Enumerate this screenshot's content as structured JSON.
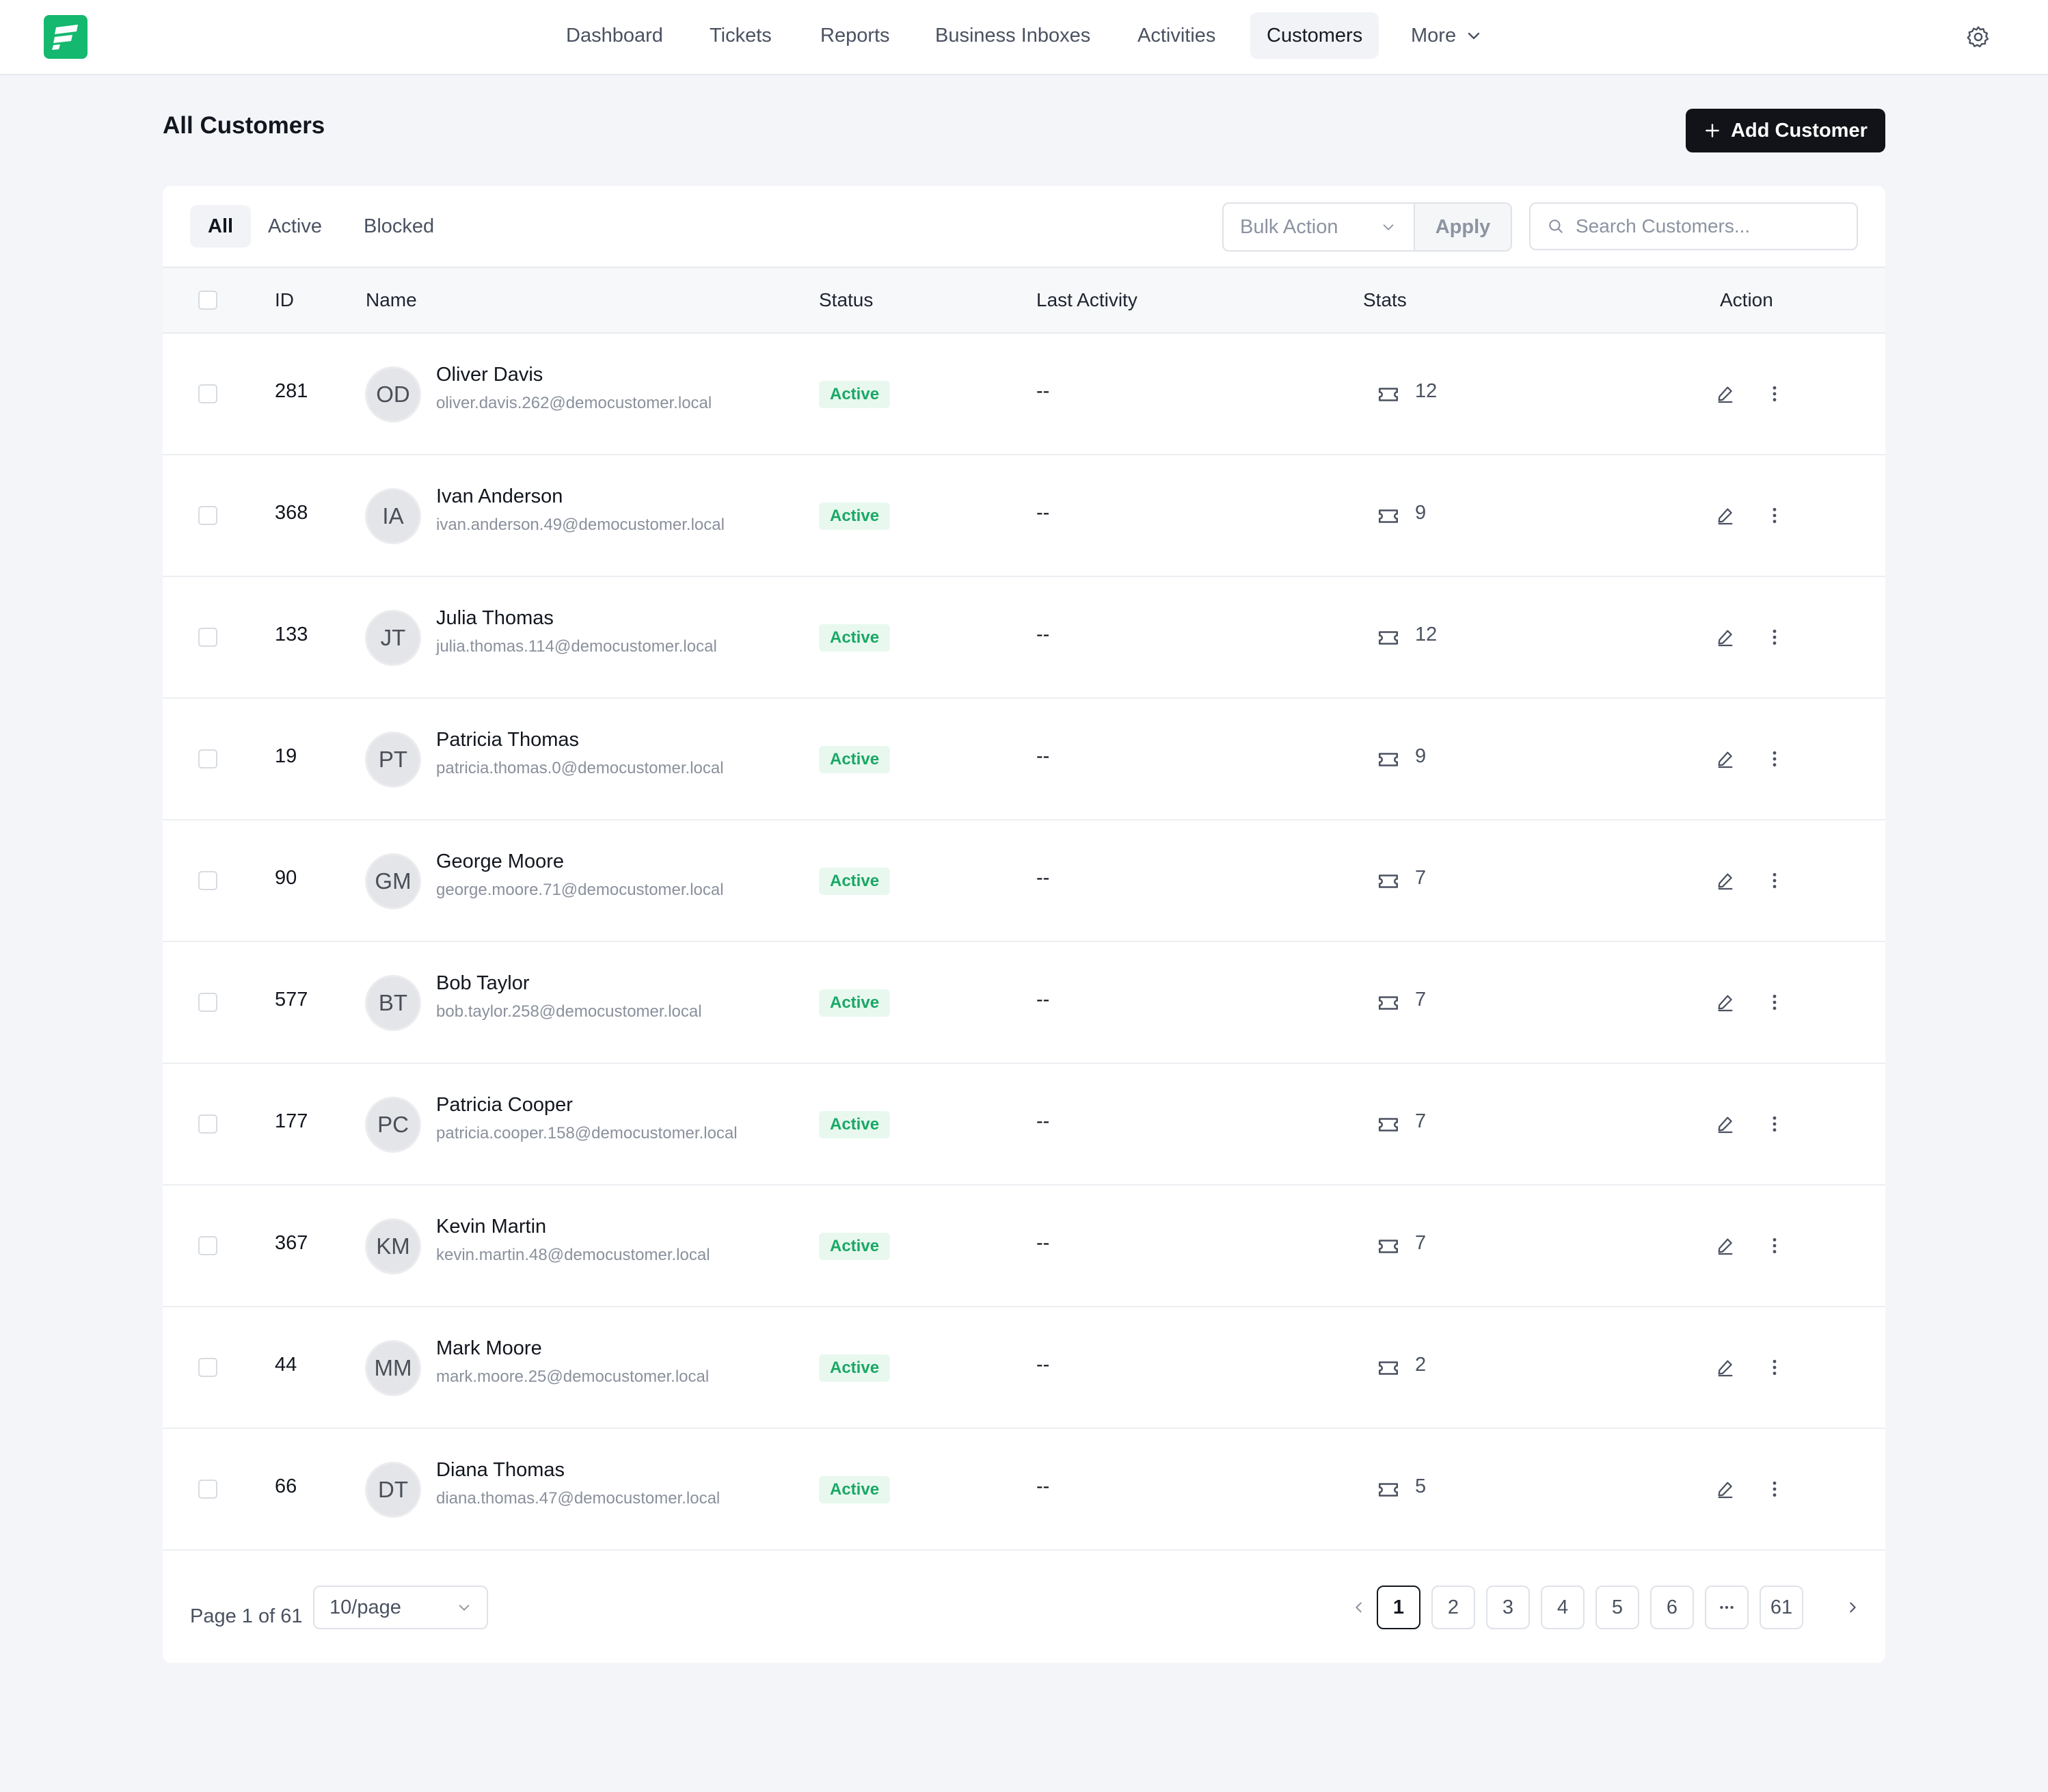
{
  "app": {
    "nav": [
      {
        "label": "Dashboard"
      },
      {
        "label": "Tickets"
      },
      {
        "label": "Reports"
      },
      {
        "label": "Business Inboxes"
      },
      {
        "label": "Activities"
      },
      {
        "label": "Customers",
        "active": true
      }
    ],
    "more_label": "More",
    "settings_icon": "gear-icon",
    "brand_color": "#14b86e"
  },
  "page": {
    "title": "All Customers",
    "add_button_label": "Add Customer"
  },
  "filters": {
    "tabs": [
      {
        "label": "All",
        "active": true
      },
      {
        "label": "Active"
      },
      {
        "label": "Blocked"
      }
    ],
    "bulk_action_placeholder": "Bulk Action",
    "apply_label": "Apply",
    "search_placeholder": "Search Customers..."
  },
  "table": {
    "columns": {
      "id": "ID",
      "name": "Name",
      "status": "Status",
      "last_activity": "Last Activity",
      "stats": "Stats",
      "action": "Action"
    },
    "rows": [
      {
        "id": "281",
        "initials": "OD",
        "name": "Oliver Davis",
        "email": "oliver.davis.262@democustomer.local",
        "status": "Active",
        "last_activity": "--",
        "tickets": "12"
      },
      {
        "id": "368",
        "initials": "IA",
        "name": "Ivan Anderson",
        "email": "ivan.anderson.49@democustomer.local",
        "status": "Active",
        "last_activity": "--",
        "tickets": "9"
      },
      {
        "id": "133",
        "initials": "JT",
        "name": "Julia Thomas",
        "email": "julia.thomas.114@democustomer.local",
        "status": "Active",
        "last_activity": "--",
        "tickets": "12"
      },
      {
        "id": "19",
        "initials": "PT",
        "name": "Patricia Thomas",
        "email": "patricia.thomas.0@democustomer.local",
        "status": "Active",
        "last_activity": "--",
        "tickets": "9"
      },
      {
        "id": "90",
        "initials": "GM",
        "name": "George Moore",
        "email": "george.moore.71@democustomer.local",
        "status": "Active",
        "last_activity": "--",
        "tickets": "7"
      },
      {
        "id": "577",
        "initials": "BT",
        "name": "Bob Taylor",
        "email": "bob.taylor.258@democustomer.local",
        "status": "Active",
        "last_activity": "--",
        "tickets": "7"
      },
      {
        "id": "177",
        "initials": "PC",
        "name": "Patricia Cooper",
        "email": "patricia.cooper.158@democustomer.local",
        "status": "Active",
        "last_activity": "--",
        "tickets": "7"
      },
      {
        "id": "367",
        "initials": "KM",
        "name": "Kevin Martin",
        "email": "kevin.martin.48@democustomer.local",
        "status": "Active",
        "last_activity": "--",
        "tickets": "7"
      },
      {
        "id": "44",
        "initials": "MM",
        "name": "Mark Moore",
        "email": "mark.moore.25@democustomer.local",
        "status": "Active",
        "last_activity": "--",
        "tickets": "2"
      },
      {
        "id": "66",
        "initials": "DT",
        "name": "Diana Thomas",
        "email": "diana.thomas.47@democustomer.local",
        "status": "Active",
        "last_activity": "--",
        "tickets": "5"
      }
    ],
    "status_color": "#1aa865"
  },
  "pagination": {
    "info": "Page 1 of 61",
    "per_page": "10/page",
    "pages": [
      "1",
      "2",
      "3",
      "4",
      "5",
      "6",
      "...",
      "61"
    ],
    "current": "1"
  }
}
